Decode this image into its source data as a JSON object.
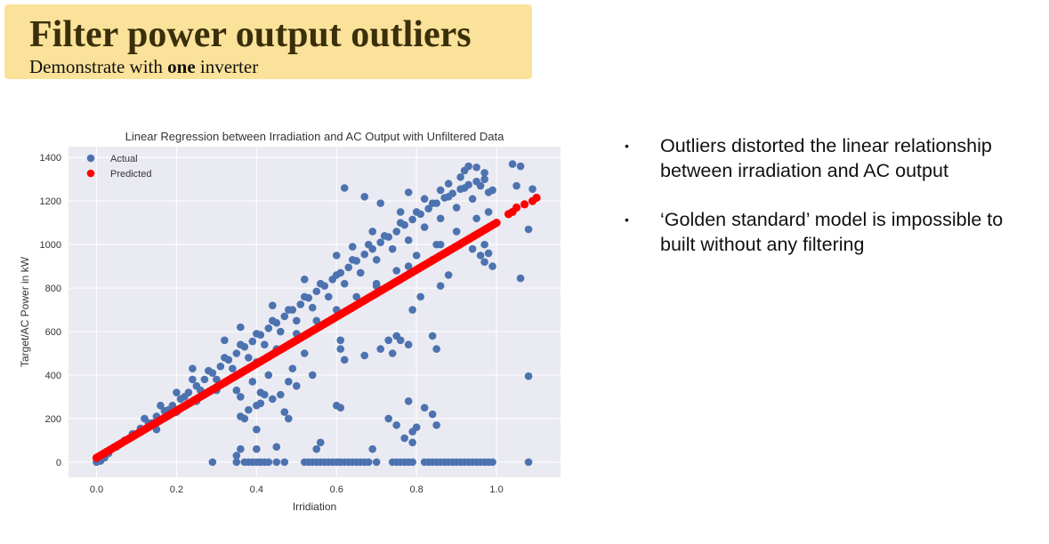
{
  "header": {
    "title": "Filter power output outliers",
    "subtitle_pre": "Demonstrate with ",
    "subtitle_bold": "one",
    "subtitle_post": " inverter"
  },
  "bullets": [
    "Outliers distorted the linear relationship between irradiation and AC output",
    "‘Golden standard’ model is impossible to built without any filtering"
  ],
  "bullet_glyph": "•",
  "chart_data": {
    "type": "scatter",
    "title": "Linear Regression between Irradiation and AC Output with Unfiltered Data",
    "xlabel": "Irridiation",
    "ylabel": "Target/AC Power in kW",
    "xlim": [
      -0.07,
      1.16
    ],
    "ylim": [
      -70,
      1450
    ],
    "xticks": [
      0.0,
      0.2,
      0.4,
      0.6,
      0.8,
      1.0
    ],
    "xtick_labels": [
      "0.0",
      "0.2",
      "0.4",
      "0.6",
      "0.8",
      "1.0"
    ],
    "yticks": [
      0,
      200,
      400,
      600,
      800,
      1000,
      1200,
      1400
    ],
    "ytick_labels": [
      "0",
      "200",
      "400",
      "600",
      "800",
      "1000",
      "1200",
      "1400"
    ],
    "grid": true,
    "legend_position": "top-left",
    "background": "#eaeaf2",
    "series": [
      {
        "name": "Actual",
        "color": "#4c72b0",
        "points": [
          [
            0.0,
            0
          ],
          [
            0.01,
            5
          ],
          [
            0.02,
            20
          ],
          [
            0.03,
            40
          ],
          [
            0.05,
            70
          ],
          [
            0.07,
            100
          ],
          [
            0.09,
            130
          ],
          [
            0.11,
            155
          ],
          [
            0.13,
            180
          ],
          [
            0.15,
            210
          ],
          [
            0.17,
            235
          ],
          [
            0.19,
            260
          ],
          [
            0.21,
            290
          ],
          [
            0.23,
            320
          ],
          [
            0.25,
            350
          ],
          [
            0.27,
            380
          ],
          [
            0.29,
            410
          ],
          [
            0.31,
            440
          ],
          [
            0.33,
            470
          ],
          [
            0.35,
            500
          ],
          [
            0.37,
            530
          ],
          [
            0.39,
            555
          ],
          [
            0.41,
            585
          ],
          [
            0.43,
            615
          ],
          [
            0.45,
            640
          ],
          [
            0.47,
            670
          ],
          [
            0.49,
            700
          ],
          [
            0.51,
            725
          ],
          [
            0.53,
            755
          ],
          [
            0.55,
            785
          ],
          [
            0.57,
            810
          ],
          [
            0.59,
            840
          ],
          [
            0.61,
            870
          ],
          [
            0.63,
            895
          ],
          [
            0.65,
            925
          ],
          [
            0.67,
            955
          ],
          [
            0.69,
            980
          ],
          [
            0.71,
            1010
          ],
          [
            0.73,
            1035
          ],
          [
            0.75,
            1060
          ],
          [
            0.77,
            1090
          ],
          [
            0.79,
            1115
          ],
          [
            0.81,
            1140
          ],
          [
            0.83,
            1165
          ],
          [
            0.85,
            1190
          ],
          [
            0.87,
            1215
          ],
          [
            0.89,
            1235
          ],
          [
            0.91,
            1255
          ],
          [
            0.93,
            1275
          ],
          [
            0.95,
            1290
          ],
          [
            0.97,
            1300
          ],
          [
            0.92,
            1340
          ],
          [
            0.95,
            1355
          ],
          [
            0.97,
            1330
          ],
          [
            0.1,
            130
          ],
          [
            0.14,
            180
          ],
          [
            0.18,
            240
          ],
          [
            0.22,
            300
          ],
          [
            0.26,
            330
          ],
          [
            0.3,
            380
          ],
          [
            0.34,
            430
          ],
          [
            0.38,
            480
          ],
          [
            0.42,
            540
          ],
          [
            0.46,
            600
          ],
          [
            0.5,
            650
          ],
          [
            0.54,
            710
          ],
          [
            0.58,
            760
          ],
          [
            0.62,
            820
          ],
          [
            0.66,
            870
          ],
          [
            0.7,
            930
          ],
          [
            0.74,
            980
          ],
          [
            0.78,
            1020
          ],
          [
            0.82,
            1080
          ],
          [
            0.86,
            1120
          ],
          [
            0.9,
            1170
          ],
          [
            0.94,
            1210
          ],
          [
            0.98,
            1240
          ],
          [
            0.12,
            200
          ],
          [
            0.16,
            260
          ],
          [
            0.2,
            320
          ],
          [
            0.24,
            380
          ],
          [
            0.28,
            420
          ],
          [
            0.32,
            480
          ],
          [
            0.36,
            540
          ],
          [
            0.4,
            590
          ],
          [
            0.44,
            650
          ],
          [
            0.48,
            700
          ],
          [
            0.52,
            760
          ],
          [
            0.56,
            820
          ],
          [
            0.6,
            860
          ],
          [
            0.64,
            930
          ],
          [
            0.68,
            1000
          ],
          [
            0.72,
            1040
          ],
          [
            0.76,
            1100
          ],
          [
            0.8,
            1150
          ],
          [
            0.84,
            1190
          ],
          [
            0.88,
            1220
          ],
          [
            0.92,
            1260
          ],
          [
            0.96,
            1270
          ],
          [
            0.99,
            1250
          ],
          [
            0.15,
            150
          ],
          [
            0.2,
            230
          ],
          [
            0.25,
            280
          ],
          [
            0.3,
            330
          ],
          [
            0.35,
            400
          ],
          [
            0.4,
            460
          ],
          [
            0.45,
            520
          ],
          [
            0.5,
            590
          ],
          [
            0.55,
            650
          ],
          [
            0.6,
            700
          ],
          [
            0.65,
            760
          ],
          [
            0.7,
            820
          ],
          [
            0.75,
            880
          ],
          [
            0.8,
            950
          ],
          [
            0.85,
            1000
          ],
          [
            0.9,
            1060
          ],
          [
            0.95,
            1120
          ],
          [
            0.98,
            1150
          ],
          [
            0.24,
            430
          ],
          [
            0.32,
            560
          ],
          [
            0.36,
            620
          ],
          [
            0.44,
            720
          ],
          [
            0.52,
            840
          ],
          [
            0.6,
            950
          ],
          [
            0.64,
            990
          ],
          [
            0.69,
            1060
          ],
          [
            0.76,
            1150
          ],
          [
            0.82,
            1210
          ],
          [
            0.86,
            1250
          ],
          [
            0.91,
            1310
          ],
          [
            0.93,
            1360
          ],
          [
            0.88,
            1280
          ],
          [
            0.62,
            1260
          ],
          [
            0.67,
            1220
          ],
          [
            0.71,
            1190
          ],
          [
            0.78,
            1240
          ],
          [
            1.04,
            1370
          ],
          [
            1.05,
            1270
          ],
          [
            1.06,
            1360
          ],
          [
            1.09,
            1255
          ],
          [
            1.08,
            1070
          ],
          [
            1.06,
            845
          ],
          [
            1.08,
            395
          ],
          [
            0.97,
            1000
          ],
          [
            0.98,
            960
          ],
          [
            0.96,
            950
          ],
          [
            0.94,
            980
          ],
          [
            0.99,
            900
          ],
          [
            0.97,
            920
          ],
          [
            0.86,
            1000
          ],
          [
            0.84,
            930
          ],
          [
            0.88,
            860
          ],
          [
            0.86,
            810
          ],
          [
            0.78,
            900
          ],
          [
            0.81,
            760
          ],
          [
            0.79,
            700
          ],
          [
            0.76,
            840
          ],
          [
            0.7,
            810
          ],
          [
            0.75,
            580
          ],
          [
            0.76,
            560
          ],
          [
            0.73,
            560
          ],
          [
            0.74,
            500
          ],
          [
            0.71,
            520
          ],
          [
            0.67,
            490
          ],
          [
            0.78,
            540
          ],
          [
            0.84,
            580
          ],
          [
            0.85,
            520
          ],
          [
            0.61,
            560
          ],
          [
            0.62,
            470
          ],
          [
            0.61,
            520
          ],
          [
            0.52,
            500
          ],
          [
            0.54,
            400
          ],
          [
            0.49,
            430
          ],
          [
            0.43,
            400
          ],
          [
            0.39,
            370
          ],
          [
            0.42,
            310
          ],
          [
            0.41,
            320
          ],
          [
            0.35,
            330
          ],
          [
            0.36,
            300
          ],
          [
            0.4,
            260
          ],
          [
            0.46,
            310
          ],
          [
            0.48,
            370
          ],
          [
            0.5,
            350
          ],
          [
            0.44,
            290
          ],
          [
            0.41,
            270
          ],
          [
            0.38,
            240
          ],
          [
            0.36,
            210
          ],
          [
            0.37,
            200
          ],
          [
            0.4,
            150
          ],
          [
            0.56,
            90
          ],
          [
            0.55,
            60
          ],
          [
            0.45,
            70
          ],
          [
            0.47,
            230
          ],
          [
            0.48,
            200
          ],
          [
            0.6,
            260
          ],
          [
            0.61,
            250
          ],
          [
            0.69,
            60
          ],
          [
            0.73,
            200
          ],
          [
            0.75,
            170
          ],
          [
            0.77,
            110
          ],
          [
            0.79,
            140
          ],
          [
            0.8,
            160
          ],
          [
            0.78,
            280
          ],
          [
            0.82,
            250
          ],
          [
            0.84,
            220
          ],
          [
            0.85,
            170
          ],
          [
            0.79,
            90
          ],
          [
            0.36,
            60
          ],
          [
            0.35,
            30
          ],
          [
            0.4,
            60
          ],
          [
            0.29,
            0
          ],
          [
            0.35,
            0
          ],
          [
            0.37,
            0
          ],
          [
            0.38,
            0
          ],
          [
            0.39,
            0
          ],
          [
            0.4,
            0
          ],
          [
            0.41,
            0
          ],
          [
            0.42,
            0
          ],
          [
            0.43,
            0
          ],
          [
            0.45,
            0
          ],
          [
            0.47,
            0
          ],
          [
            0.52,
            0
          ],
          [
            0.53,
            0
          ],
          [
            0.54,
            0
          ],
          [
            0.55,
            0
          ],
          [
            0.56,
            0
          ],
          [
            0.57,
            0
          ],
          [
            0.58,
            0
          ],
          [
            0.59,
            0
          ],
          [
            0.6,
            0
          ],
          [
            0.61,
            0
          ],
          [
            0.62,
            0
          ],
          [
            0.63,
            0
          ],
          [
            0.64,
            0
          ],
          [
            0.65,
            0
          ],
          [
            0.66,
            0
          ],
          [
            0.67,
            0
          ],
          [
            0.68,
            0
          ],
          [
            0.7,
            0
          ],
          [
            0.74,
            0
          ],
          [
            0.75,
            0
          ],
          [
            0.76,
            0
          ],
          [
            0.77,
            0
          ],
          [
            0.78,
            0
          ],
          [
            0.79,
            0
          ],
          [
            0.82,
            0
          ],
          [
            0.83,
            0
          ],
          [
            0.84,
            0
          ],
          [
            0.85,
            0
          ],
          [
            0.86,
            0
          ],
          [
            0.87,
            0
          ],
          [
            0.88,
            0
          ],
          [
            0.89,
            0
          ],
          [
            0.9,
            0
          ],
          [
            0.91,
            0
          ],
          [
            0.92,
            0
          ],
          [
            0.93,
            0
          ],
          [
            0.94,
            0
          ],
          [
            0.95,
            0
          ],
          [
            0.96,
            0
          ],
          [
            0.97,
            0
          ],
          [
            0.98,
            0
          ],
          [
            0.99,
            0
          ],
          [
            1.08,
            0
          ]
        ]
      },
      {
        "name": "Predicted",
        "color": "#ff0000",
        "line_from": [
          0.0,
          20
        ],
        "line_to": [
          1.0,
          1100
        ],
        "extra_points": [
          [
            1.03,
            1140
          ],
          [
            1.04,
            1150
          ],
          [
            1.05,
            1170
          ],
          [
            1.07,
            1185
          ],
          [
            1.09,
            1200
          ],
          [
            1.1,
            1215
          ]
        ]
      }
    ]
  }
}
